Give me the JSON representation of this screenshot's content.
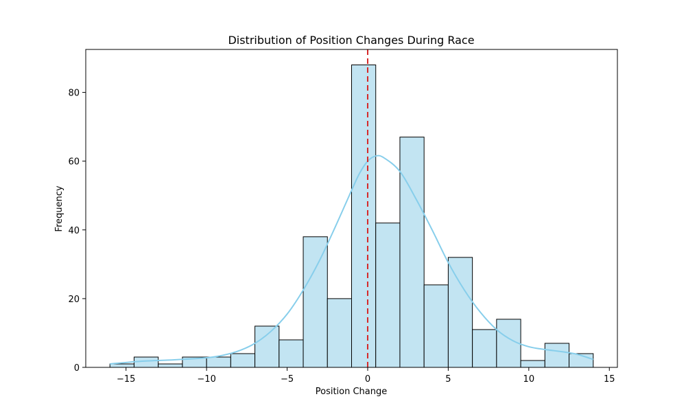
{
  "chart_data": {
    "type": "bar",
    "title": "Distribution of Position Changes During Race",
    "xlabel": "Position Change",
    "ylabel": "Frequency",
    "xlim": [
      -17.5,
      15.5
    ],
    "ylim": [
      0,
      92.5
    ],
    "x_ticks": [
      -15,
      -10,
      -5,
      0,
      5,
      10,
      15
    ],
    "y_ticks": [
      0,
      20,
      40,
      60,
      80
    ],
    "bin_edges": [
      -16,
      -14.5,
      -13,
      -11.5,
      -10,
      -8.5,
      -7,
      -5.5,
      -4,
      -2.5,
      -1,
      0.5,
      2,
      3.5,
      5,
      6.5,
      8,
      9.5,
      11,
      12.5,
      14
    ],
    "counts": [
      1,
      3,
      1,
      3,
      3,
      4,
      12,
      8,
      38,
      20,
      88,
      42,
      67,
      24,
      32,
      11,
      14,
      2,
      7,
      4
    ],
    "kde": {
      "x": [
        -16,
        -14,
        -12,
        -10,
        -9,
        -8,
        -7,
        -6,
        -5,
        -4,
        -3,
        -2,
        -1,
        -0.5,
        0,
        0.5,
        1,
        2,
        3,
        4,
        5,
        6,
        7,
        8,
        9,
        10,
        11,
        12,
        13,
        14
      ],
      "y": [
        1,
        1.8,
        2.2,
        2.8,
        3.5,
        4.8,
        7,
        10.5,
        15.5,
        22.5,
        31,
        41,
        51.5,
        56.5,
        60,
        61.5,
        61,
        57,
        49,
        40,
        30.5,
        22.5,
        16,
        11,
        7.8,
        6,
        5.2,
        4.6,
        3.8,
        2.3
      ]
    },
    "vline_x": 0,
    "colors": {
      "bar_fill": "#c2e4f2",
      "bar_edge": "#000000",
      "kde_line": "#87ceeb",
      "vline": "#d62728"
    },
    "grid": false
  }
}
